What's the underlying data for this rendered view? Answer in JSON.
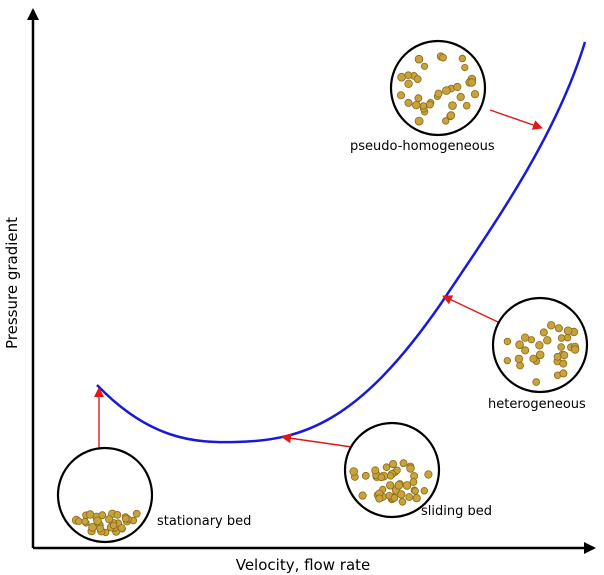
{
  "axes": {
    "x_label": "Velocity, flow rate",
    "y_label": "Pressure gradient"
  },
  "regimes": [
    {
      "id": "stationary",
      "label": "stationary bed",
      "distribution": "settled"
    },
    {
      "id": "sliding",
      "label": "sliding bed",
      "distribution": "lower"
    },
    {
      "id": "heterogeneous",
      "label": "heterogeneous",
      "distribution": "partial"
    },
    {
      "id": "pseudo",
      "label": "pseudo-homogeneous",
      "distribution": "uniform"
    }
  ],
  "colors": {
    "curve": "#1a1ad6",
    "arrow": "#e01818",
    "axis": "#000000",
    "particle": "#c8a23a",
    "particle_edge": "#8a6a1a",
    "bubble_outline": "#000000"
  }
}
